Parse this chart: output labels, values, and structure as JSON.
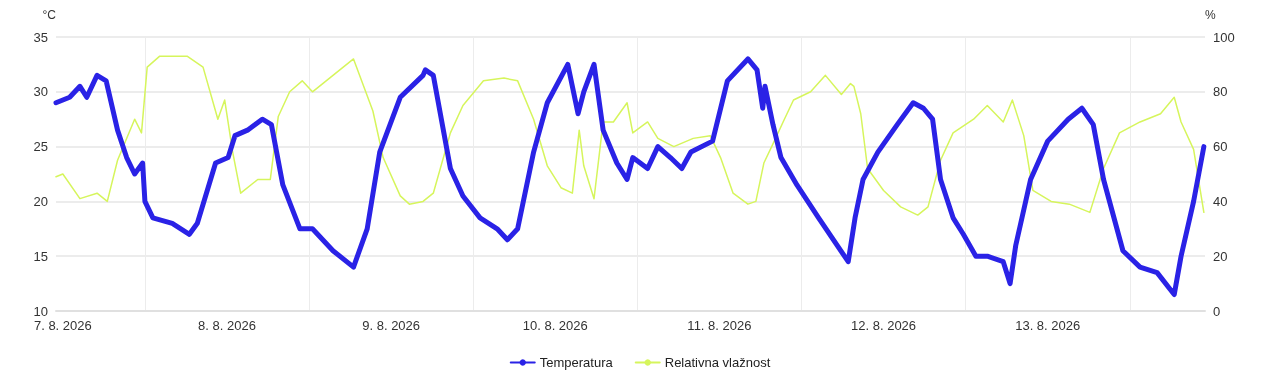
{
  "chart_data": {
    "type": "line",
    "ylabel": "°C",
    "y2label": "%",
    "xlim": [
      "2026-08-07T11:00",
      "2026-08-14T11:00"
    ],
    "xticks": [
      {
        "value": "2026-08-07T12:00",
        "label": "7. 8. 2026"
      },
      {
        "value": "2026-08-08T00:00",
        "label": null
      },
      {
        "value": "2026-08-08T12:00",
        "label": "8. 8. 2026"
      },
      {
        "value": "2026-08-09T00:00",
        "label": null
      },
      {
        "value": "2026-08-09T12:00",
        "label": "9. 8. 2026"
      },
      {
        "value": "2026-08-10T00:00",
        "label": null
      },
      {
        "value": "2026-08-10T12:00",
        "label": "10. 8. 2026"
      },
      {
        "value": "2026-08-11T00:00",
        "label": null
      },
      {
        "value": "2026-08-11T12:00",
        "label": "11. 8. 2026"
      },
      {
        "value": "2026-08-12T00:00",
        "label": null
      },
      {
        "value": "2026-08-12T12:00",
        "label": "12. 8. 2026"
      },
      {
        "value": "2026-08-13T00:00",
        "label": null
      },
      {
        "value": "2026-08-13T12:00",
        "label": "13. 8. 2026"
      },
      {
        "value": "2026-08-14T00:00",
        "label": null
      }
    ],
    "ylim": [
      10,
      35
    ],
    "yticks": [
      10,
      15,
      20,
      25,
      30,
      35
    ],
    "y2lim": [
      0,
      100
    ],
    "y2ticks": [
      0,
      20,
      40,
      60,
      80,
      100
    ],
    "grid": true,
    "legend": "bottom",
    "marker": "none",
    "line_style": "solid",
    "series": [
      {
        "name": "Temperatura",
        "color": "#2a22e6",
        "x": [
          "2026-08-07T11:00",
          "2026-08-07T13:00",
          "2026-08-07T14:30",
          "2026-08-07T15:30",
          "2026-08-07T17:00",
          "2026-08-07T18:20",
          "2026-08-07T20:00",
          "2026-08-07T21:20",
          "2026-08-07T22:30",
          "2026-08-07T23:40",
          "2026-08-08T00:00",
          "2026-08-08T01:10",
          "2026-08-08T04:00",
          "2026-08-08T06:30",
          "2026-08-08T07:40",
          "2026-08-08T10:20",
          "2026-08-08T12:10",
          "2026-08-08T13:10",
          "2026-08-08T15:00",
          "2026-08-08T17:10",
          "2026-08-08T18:30",
          "2026-08-08T20:10",
          "2026-08-08T22:40",
          "2026-08-09T00:30",
          "2026-08-09T03:30",
          "2026-08-09T06:30",
          "2026-08-09T08:30",
          "2026-08-09T10:20",
          "2026-08-09T13:20",
          "2026-08-09T16:40",
          "2026-08-09T17:00",
          "2026-08-09T18:10",
          "2026-08-09T20:40",
          "2026-08-09T22:30",
          "2026-08-10T01:00",
          "2026-08-10T03:30",
          "2026-08-10T05:00",
          "2026-08-10T06:30",
          "2026-08-10T08:50",
          "2026-08-10T10:50",
          "2026-08-10T13:50",
          "2026-08-10T15:20",
          "2026-08-10T16:10",
          "2026-08-10T17:40",
          "2026-08-10T19:00",
          "2026-08-10T21:00",
          "2026-08-10T22:30",
          "2026-08-10T23:20",
          "2026-08-11T01:30",
          "2026-08-11T03:00",
          "2026-08-11T04:50",
          "2026-08-11T06:30",
          "2026-08-11T07:50",
          "2026-08-11T11:00",
          "2026-08-11T13:10",
          "2026-08-11T16:10",
          "2026-08-11T17:30",
          "2026-08-11T18:20",
          "2026-08-11T18:40",
          "2026-08-11T19:50",
          "2026-08-11T21:00",
          "2026-08-11T23:20",
          "2026-08-12T02:30",
          "2026-08-12T06:50",
          "2026-08-12T07:50",
          "2026-08-12T09:00",
          "2026-08-12T11:10",
          "2026-08-12T14:00",
          "2026-08-12T16:20",
          "2026-08-12T17:50",
          "2026-08-12T19:10",
          "2026-08-12T20:20",
          "2026-08-12T22:10",
          "2026-08-12T23:40",
          "2026-08-13T01:30",
          "2026-08-13T03:10",
          "2026-08-13T05:30",
          "2026-08-13T06:30",
          "2026-08-13T07:20",
          "2026-08-13T09:30",
          "2026-08-13T12:00",
          "2026-08-13T15:00",
          "2026-08-13T17:00",
          "2026-08-13T18:40",
          "2026-08-13T20:10",
          "2026-08-13T23:00",
          "2026-08-14T01:30",
          "2026-08-14T04:00",
          "2026-08-14T06:30",
          "2026-08-14T07:30",
          "2026-08-14T09:20",
          "2026-08-14T10:50"
        ],
        "values": [
          29,
          29.5,
          30.5,
          29.5,
          31.5,
          31,
          26.5,
          24,
          22.5,
          23.5,
          20,
          18.5,
          18,
          17,
          18,
          23.5,
          24,
          26,
          26.5,
          27.5,
          27,
          21.5,
          17.5,
          17.5,
          15.5,
          14,
          17.5,
          24.5,
          29.5,
          31.5,
          32,
          31.5,
          23,
          20.5,
          18.5,
          17.5,
          16.5,
          17.5,
          24.5,
          29,
          32.5,
          28,
          30,
          32.5,
          26.5,
          23.5,
          22,
          24,
          23,
          25,
          24,
          23,
          24.5,
          25.5,
          31,
          33,
          32,
          28.5,
          30.5,
          27,
          24,
          21.5,
          18.5,
          14.5,
          18.5,
          22,
          24.5,
          27,
          29,
          28.5,
          27.5,
          22,
          18.5,
          17,
          15,
          15,
          14.5,
          12.5,
          16,
          22,
          25.5,
          27.5,
          28.5,
          27,
          22,
          15.5,
          14,
          13.5,
          11.5,
          15,
          20,
          25
        ]
      },
      {
        "name": "Relativna vlažnost",
        "color": "#d6f55c",
        "axis": "y2",
        "x": [
          "2026-08-07T11:00",
          "2026-08-07T12:00",
          "2026-08-07T14:30",
          "2026-08-07T17:00",
          "2026-08-07T18:30",
          "2026-08-07T20:00",
          "2026-08-07T22:30",
          "2026-08-07T23:30",
          "2026-08-08T00:20",
          "2026-08-08T02:10",
          "2026-08-08T06:10",
          "2026-08-08T08:30",
          "2026-08-08T10:40",
          "2026-08-08T11:40",
          "2026-08-08T12:50",
          "2026-08-08T14:00",
          "2026-08-08T16:30",
          "2026-08-08T18:20",
          "2026-08-08T19:30",
          "2026-08-08T21:10",
          "2026-08-08T23:00",
          "2026-08-09T00:30",
          "2026-08-09T03:30",
          "2026-08-09T06:30",
          "2026-08-09T09:20",
          "2026-08-09T10:50",
          "2026-08-09T13:20",
          "2026-08-09T14:40",
          "2026-08-09T16:40",
          "2026-08-09T18:10",
          "2026-08-09T20:40",
          "2026-08-09T22:30",
          "2026-08-10T01:30",
          "2026-08-10T04:30",
          "2026-08-10T06:30",
          "2026-08-10T08:50",
          "2026-08-10T10:50",
          "2026-08-10T12:50",
          "2026-08-10T14:30",
          "2026-08-10T15:30",
          "2026-08-10T16:10",
          "2026-08-10T17:40",
          "2026-08-10T19:00",
          "2026-08-10T20:30",
          "2026-08-10T22:30",
          "2026-08-10T23:20",
          "2026-08-11T01:30",
          "2026-08-11T03:00",
          "2026-08-11T05:20",
          "2026-08-11T08:10",
          "2026-08-11T10:40",
          "2026-08-11T12:10",
          "2026-08-11T14:00",
          "2026-08-11T16:10",
          "2026-08-11T17:20",
          "2026-08-11T18:30",
          "2026-08-11T19:50",
          "2026-08-11T21:30",
          "2026-08-11T22:50",
          "2026-08-12T01:20",
          "2026-08-12T03:30",
          "2026-08-12T05:50",
          "2026-08-12T07:10",
          "2026-08-12T07:40",
          "2026-08-12T08:40",
          "2026-08-12T09:40",
          "2026-08-12T12:00",
          "2026-08-12T14:30",
          "2026-08-12T17:00",
          "2026-08-12T18:30",
          "2026-08-12T20:20",
          "2026-08-12T22:10",
          "2026-08-13T01:10",
          "2026-08-13T03:10",
          "2026-08-13T05:30",
          "2026-08-13T06:50",
          "2026-08-13T08:30",
          "2026-08-13T09:50",
          "2026-08-13T12:30",
          "2026-08-13T15:10",
          "2026-08-13T18:10",
          "2026-08-13T20:10",
          "2026-08-13T22:30",
          "2026-08-14T01:30",
          "2026-08-14T04:30",
          "2026-08-14T06:30",
          "2026-08-14T07:30",
          "2026-08-14T09:20",
          "2026-08-14T10:50"
        ],
        "values": [
          49,
          50,
          41,
          43,
          40,
          55,
          70,
          65,
          89,
          93,
          93,
          89,
          70,
          77,
          58,
          43,
          48,
          48,
          71,
          80,
          84,
          80,
          86,
          92,
          73,
          56,
          42,
          39,
          40,
          43,
          65,
          75,
          84,
          85,
          84,
          70,
          53,
          45,
          43,
          66,
          53,
          41,
          69,
          69,
          76,
          65,
          69,
          63,
          60,
          63,
          64,
          56,
          43,
          39,
          40,
          54,
          61,
          70,
          77,
          80,
          86,
          79,
          83,
          82,
          72,
          52,
          44,
          38,
          35,
          38,
          55,
          65,
          70,
          75,
          69,
          77,
          64,
          44,
          40,
          39,
          36,
          52,
          65,
          69,
          72,
          78,
          69,
          59,
          36
        ]
      }
    ]
  }
}
